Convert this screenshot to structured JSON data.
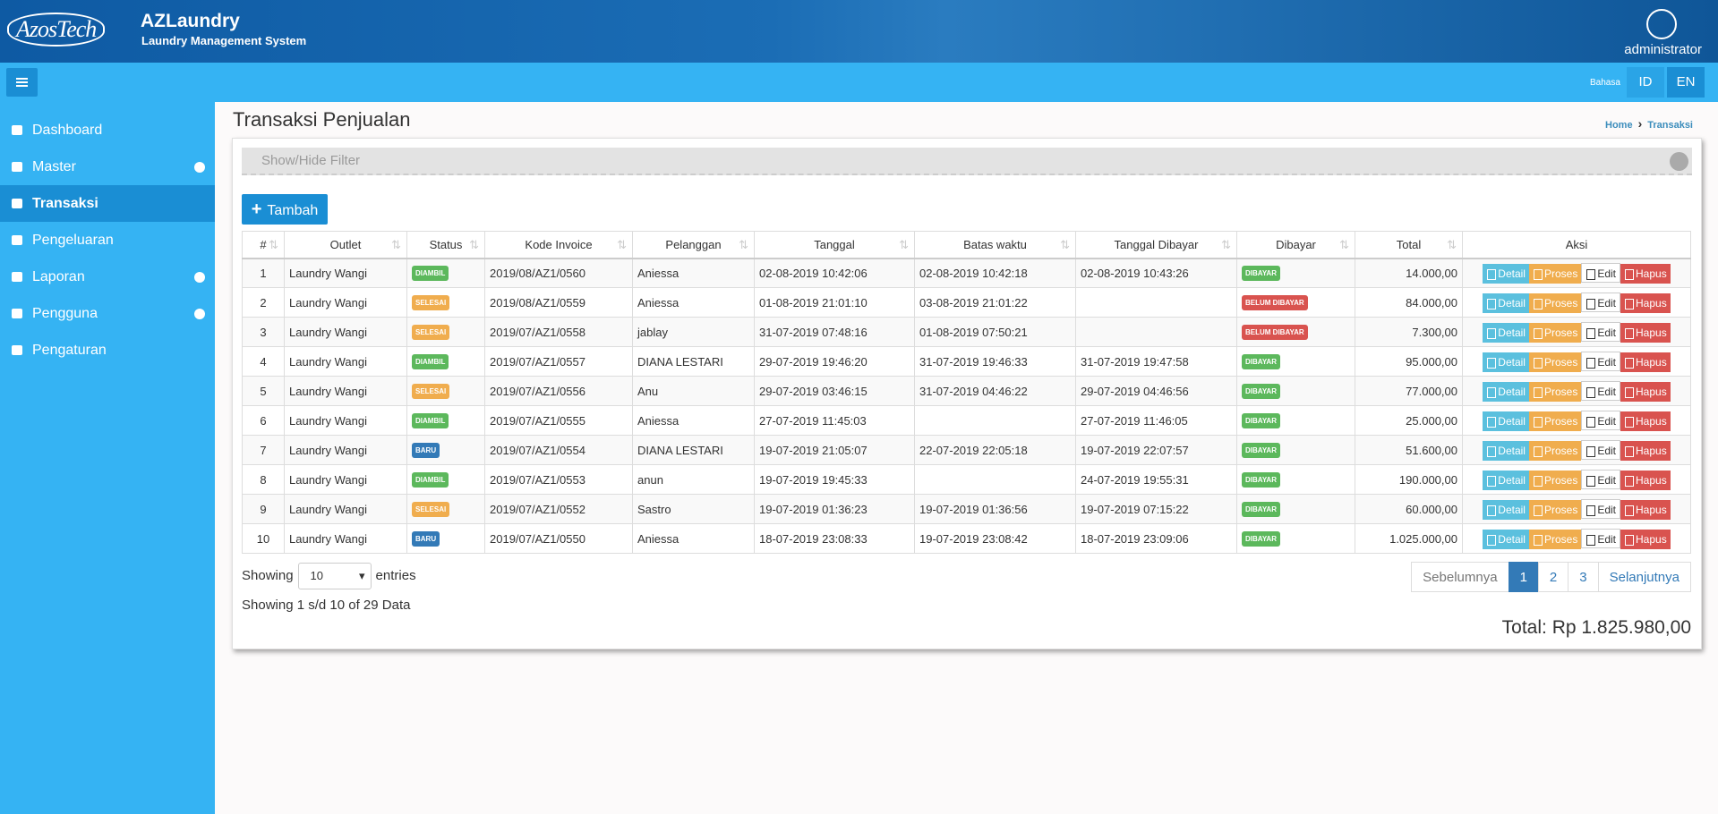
{
  "header": {
    "logo": "AzosTech",
    "app_name": "AZLaundry",
    "app_subtitle": "Laundry Management System",
    "user": "administrator"
  },
  "topbar": {
    "language_label": "Bahasa",
    "languages": [
      "ID",
      "EN"
    ]
  },
  "sidebar": [
    {
      "label": "Dashboard",
      "expandable": false,
      "active": false
    },
    {
      "label": "Master",
      "expandable": true,
      "active": false
    },
    {
      "label": "Transaksi",
      "expandable": false,
      "active": true
    },
    {
      "label": "Pengeluaran",
      "expandable": false,
      "active": false
    },
    {
      "label": "Laporan",
      "expandable": true,
      "active": false
    },
    {
      "label": "Pengguna",
      "expandable": true,
      "active": false
    },
    {
      "label": "Pengaturan",
      "expandable": false,
      "active": false
    }
  ],
  "page": {
    "title": "Transaksi Penjualan",
    "breadcrumb": [
      "Home",
      "Transaksi"
    ]
  },
  "filter": "Show/Hide Filter",
  "add_button": "Tambah",
  "table": {
    "columns": [
      "#",
      "Outlet",
      "Status",
      "Kode Invoice",
      "Pelanggan",
      "Tanggal",
      "Batas waktu",
      "Tanggal Dibayar",
      "Dibayar",
      "Total",
      "Aksi"
    ],
    "actions": [
      "Detail",
      "Proses",
      "Edit",
      "Hapus"
    ],
    "rows": [
      {
        "no": "1",
        "outlet": "Laundry Wangi",
        "status": "DIAMBIL",
        "status_color": "#5cb85c",
        "invoice": "2019/08/AZ1/0560",
        "customer": "Aniessa",
        "date": "02-08-2019 10:42:06",
        "deadline": "02-08-2019 10:42:18",
        "paid_date": "02-08-2019 10:43:26",
        "paid": "DIBAYAR",
        "paid_color": "#5cb85c",
        "total": "14.000,00"
      },
      {
        "no": "2",
        "outlet": "Laundry Wangi",
        "status": "SELESAI",
        "status_color": "#f0ad4e",
        "invoice": "2019/08/AZ1/0559",
        "customer": "Aniessa",
        "date": "01-08-2019 21:01:10",
        "deadline": "03-08-2019 21:01:22",
        "paid_date": null,
        "paid": "BELUM DIBAYAR",
        "paid_color": "#d9534f",
        "total": "84.000,00"
      },
      {
        "no": "3",
        "outlet": "Laundry Wangi",
        "status": "SELESAI",
        "status_color": "#f0ad4e",
        "invoice": "2019/07/AZ1/0558",
        "customer": "jablay",
        "date": "31-07-2019 07:48:16",
        "deadline": "01-08-2019 07:50:21",
        "paid_date": null,
        "paid": "BELUM DIBAYAR",
        "paid_color": "#d9534f",
        "total": "7.300,00"
      },
      {
        "no": "4",
        "outlet": "Laundry Wangi",
        "status": "DIAMBIL",
        "status_color": "#5cb85c",
        "invoice": "2019/07/AZ1/0557",
        "customer": "DIANA LESTARI",
        "date": "29-07-2019 19:46:20",
        "deadline": "31-07-2019 19:46:33",
        "paid_date": "31-07-2019 19:47:58",
        "paid": "DIBAYAR",
        "paid_color": "#5cb85c",
        "total": "95.000,00"
      },
      {
        "no": "5",
        "outlet": "Laundry Wangi",
        "status": "SELESAI",
        "status_color": "#f0ad4e",
        "invoice": "2019/07/AZ1/0556",
        "customer": "Anu",
        "date": "29-07-2019 03:46:15",
        "deadline": "31-07-2019 04:46:22",
        "paid_date": "29-07-2019 04:46:56",
        "paid": "DIBAYAR",
        "paid_color": "#5cb85c",
        "total": "77.000,00"
      },
      {
        "no": "6",
        "outlet": "Laundry Wangi",
        "status": "DIAMBIL",
        "status_color": "#5cb85c",
        "invoice": "2019/07/AZ1/0555",
        "customer": "Aniessa",
        "date": "27-07-2019 11:45:03",
        "deadline": null,
        "paid_date": "27-07-2019 11:46:05",
        "paid": "DIBAYAR",
        "paid_color": "#5cb85c",
        "total": "25.000,00"
      },
      {
        "no": "7",
        "outlet": "Laundry Wangi",
        "status": "BARU",
        "status_color": "#337ab7",
        "invoice": "2019/07/AZ1/0554",
        "customer": "DIANA LESTARI",
        "date": "19-07-2019 21:05:07",
        "deadline": "22-07-2019 22:05:18",
        "paid_date": "19-07-2019 22:07:57",
        "paid": "DIBAYAR",
        "paid_color": "#5cb85c",
        "total": "51.600,00"
      },
      {
        "no": "8",
        "outlet": "Laundry Wangi",
        "status": "DIAMBIL",
        "status_color": "#5cb85c",
        "invoice": "2019/07/AZ1/0553",
        "customer": "anun",
        "date": "19-07-2019 19:45:33",
        "deadline": null,
        "paid_date": "24-07-2019 19:55:31",
        "paid": "DIBAYAR",
        "paid_color": "#5cb85c",
        "total": "190.000,00"
      },
      {
        "no": "9",
        "outlet": "Laundry Wangi",
        "status": "SELESAI",
        "status_color": "#f0ad4e",
        "invoice": "2019/07/AZ1/0552",
        "customer": "Sastro",
        "date": "19-07-2019 01:36:23",
        "deadline": "19-07-2019 01:36:56",
        "paid_date": "19-07-2019 07:15:22",
        "paid": "DIBAYAR",
        "paid_color": "#5cb85c",
        "total": "60.000,00"
      },
      {
        "no": "10",
        "outlet": "Laundry Wangi",
        "status": "BARU",
        "status_color": "#337ab7",
        "invoice": "2019/07/AZ1/0550",
        "customer": "Aniessa",
        "date": "18-07-2019 23:08:33",
        "deadline": "19-07-2019 23:08:42",
        "paid_date": "18-07-2019 23:09:06",
        "paid": "DIBAYAR",
        "paid_color": "#5cb85c",
        "total": "1.025.000,00"
      }
    ]
  },
  "length": {
    "before": "Showing",
    "value": "10",
    "after": "entries"
  },
  "info": "Showing 1 s/d 10 of 29 Data",
  "pagination": {
    "items": [
      "Sebelumnya",
      "1",
      "2",
      "3",
      "Selanjutnya"
    ],
    "active": 1
  },
  "grand_total": "Total: Rp 1.825.980,00"
}
